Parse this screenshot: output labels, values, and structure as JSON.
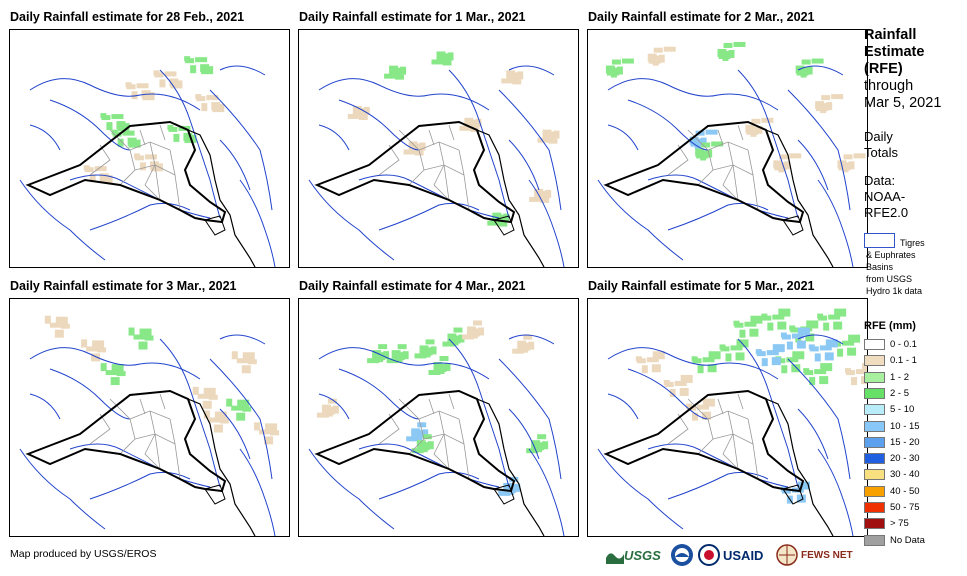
{
  "panels": [
    {
      "title": "Daily Rainfall estimate for 28 Feb., 2021",
      "rain": [
        [
          0.4,
          0.45,
          "green"
        ],
        [
          0.36,
          0.38,
          "green"
        ],
        [
          0.6,
          0.43,
          "green"
        ],
        [
          0.45,
          0.25,
          "beige"
        ],
        [
          0.55,
          0.2,
          "beige"
        ],
        [
          0.7,
          0.3,
          "beige"
        ],
        [
          0.3,
          0.6,
          "beige"
        ],
        [
          0.48,
          0.55,
          "beige"
        ],
        [
          0.66,
          0.14,
          "green"
        ]
      ]
    },
    {
      "title": "Daily Rainfall estimate for 1 Mar., 2021",
      "rain": [
        [
          0.5,
          0.12,
          "green"
        ],
        [
          0.33,
          0.18,
          "green"
        ],
        [
          0.6,
          0.4,
          "beige"
        ],
        [
          0.75,
          0.2,
          "beige"
        ],
        [
          0.88,
          0.45,
          "beige"
        ],
        [
          0.4,
          0.5,
          "beige"
        ],
        [
          0.85,
          0.7,
          "beige"
        ],
        [
          0.7,
          0.8,
          "green"
        ],
        [
          0.2,
          0.35,
          "beige"
        ]
      ]
    },
    {
      "title": "Daily Rainfall estimate for 2 Mar., 2021",
      "rain": [
        [
          0.1,
          0.15,
          "green"
        ],
        [
          0.25,
          0.1,
          "beige"
        ],
        [
          0.5,
          0.08,
          "green"
        ],
        [
          0.78,
          0.15,
          "green"
        ],
        [
          0.85,
          0.3,
          "beige"
        ],
        [
          0.6,
          0.4,
          "beige"
        ],
        [
          0.4,
          0.45,
          "blue"
        ],
        [
          0.42,
          0.5,
          "green"
        ],
        [
          0.7,
          0.55,
          "beige"
        ],
        [
          0.93,
          0.55,
          "beige"
        ]
      ]
    },
    {
      "title": "Daily Rainfall estimate for 3 Mar., 2021",
      "rain": [
        [
          0.15,
          0.1,
          "beige"
        ],
        [
          0.28,
          0.2,
          "beige"
        ],
        [
          0.45,
          0.15,
          "green"
        ],
        [
          0.82,
          0.25,
          "beige"
        ],
        [
          0.8,
          0.45,
          "green"
        ],
        [
          0.68,
          0.4,
          "beige"
        ],
        [
          0.72,
          0.5,
          "beige"
        ],
        [
          0.9,
          0.55,
          "beige"
        ],
        [
          0.35,
          0.3,
          "green"
        ]
      ]
    },
    {
      "title": "Daily Rainfall estimate for 4 Mar., 2021",
      "rain": [
        [
          0.35,
          0.22,
          "green"
        ],
        [
          0.45,
          0.2,
          "green"
        ],
        [
          0.55,
          0.15,
          "green"
        ],
        [
          0.62,
          0.12,
          "beige"
        ],
        [
          0.28,
          0.22,
          "green"
        ],
        [
          0.5,
          0.27,
          "green"
        ],
        [
          0.8,
          0.18,
          "beige"
        ],
        [
          0.42,
          0.55,
          "blue"
        ],
        [
          0.44,
          0.6,
          "green"
        ],
        [
          0.75,
          0.78,
          "blue"
        ],
        [
          0.1,
          0.45,
          "beige"
        ],
        [
          0.85,
          0.6,
          "green"
        ]
      ]
    },
    {
      "title": "Daily Rainfall estimate for 5 Mar., 2021",
      "rain": [
        [
          0.55,
          0.1,
          "green"
        ],
        [
          0.65,
          0.07,
          "green"
        ],
        [
          0.75,
          0.12,
          "green"
        ],
        [
          0.85,
          0.07,
          "green"
        ],
        [
          0.9,
          0.18,
          "green"
        ],
        [
          0.7,
          0.25,
          "green"
        ],
        [
          0.8,
          0.3,
          "green"
        ],
        [
          0.5,
          0.2,
          "green"
        ],
        [
          0.4,
          0.25,
          "green"
        ],
        [
          0.72,
          0.15,
          "blue"
        ],
        [
          0.82,
          0.2,
          "blue"
        ],
        [
          0.63,
          0.22,
          "blue"
        ],
        [
          0.2,
          0.25,
          "beige"
        ],
        [
          0.3,
          0.35,
          "beige"
        ],
        [
          0.38,
          0.45,
          "beige"
        ],
        [
          0.72,
          0.8,
          "blue"
        ],
        [
          0.95,
          0.3,
          "beige"
        ]
      ]
    }
  ],
  "side": {
    "title_bold": [
      "Rainfall",
      "Estimate",
      "(RFE)"
    ],
    "title_plain": [
      "through",
      "Mar 5, 2021"
    ],
    "totals": [
      "Daily",
      "Totals"
    ],
    "data_lines": [
      "Data:",
      "NOAA-",
      "RFE2.0"
    ],
    "basin_lines": [
      "Tigres",
      "& Euphrates",
      "Basins",
      "from USGS",
      "Hydro 1k data"
    ]
  },
  "legend": {
    "title": "RFE (mm)",
    "items": [
      {
        "label": "0 - 0.1",
        "color": "#ffffff"
      },
      {
        "label": "0.1 - 1",
        "color": "#f0dcbe"
      },
      {
        "label": "1 - 2",
        "color": "#a8f0a0"
      },
      {
        "label": "2 - 5",
        "color": "#66e066"
      },
      {
        "label": "5 - 10",
        "color": "#b8ecf8"
      },
      {
        "label": "10 - 15",
        "color": "#88c8f8"
      },
      {
        "label": "15 - 20",
        "color": "#5ca0ee"
      },
      {
        "label": "20 - 30",
        "color": "#2060e0"
      },
      {
        "label": "30 - 40",
        "color": "#f8e080"
      },
      {
        "label": "40 - 50",
        "color": "#f8a000"
      },
      {
        "label": "50 - 75",
        "color": "#f03000"
      },
      {
        "label": "> 75",
        "color": "#a01010"
      },
      {
        "label": "No Data",
        "color": "#a0a0a0"
      }
    ]
  },
  "colors": {
    "green": "#88e888",
    "beige": "#ecd8bc",
    "blue": "#8cc8f4",
    "river": "#2244cc"
  },
  "footer": "Map produced by USGS/EROS",
  "logos": {
    "usgs": "USGS",
    "usaid": "USAID",
    "fews": "FEWS NET"
  }
}
